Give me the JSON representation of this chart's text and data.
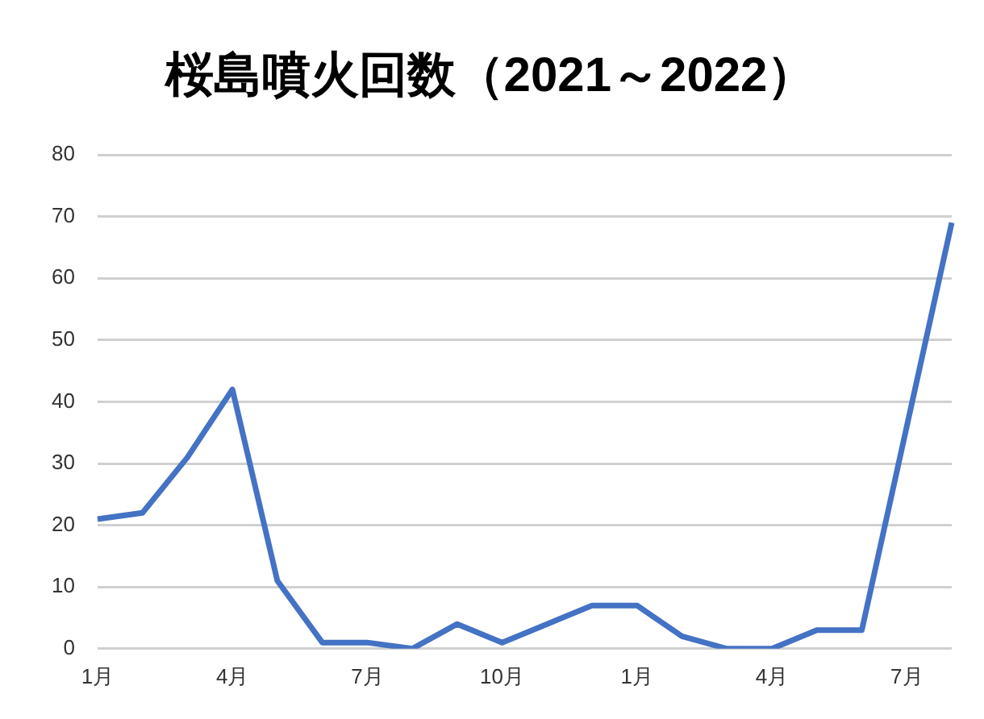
{
  "chart_data": {
    "type": "line",
    "title": "桜島噴火回数（2021～2022）",
    "categories": [
      "1月",
      null,
      null,
      "4月",
      null,
      null,
      "7月",
      null,
      null,
      "10月",
      null,
      null,
      "1月",
      null,
      null,
      "4月",
      null,
      null,
      "7月",
      null
    ],
    "series": [
      {
        "color": "#4472c4",
        "values": [
          21,
          22,
          31,
          42,
          11,
          1,
          1,
          0,
          4,
          1,
          4,
          7,
          7,
          2,
          0,
          0,
          3,
          3,
          36,
          69
        ]
      }
    ],
    "ylim": [
      0,
      80
    ],
    "yticks": [
      0,
      10,
      20,
      30,
      40,
      50,
      60,
      70,
      80
    ],
    "grid": "y",
    "legend": false,
    "marker": "none",
    "line_style": "solid"
  }
}
